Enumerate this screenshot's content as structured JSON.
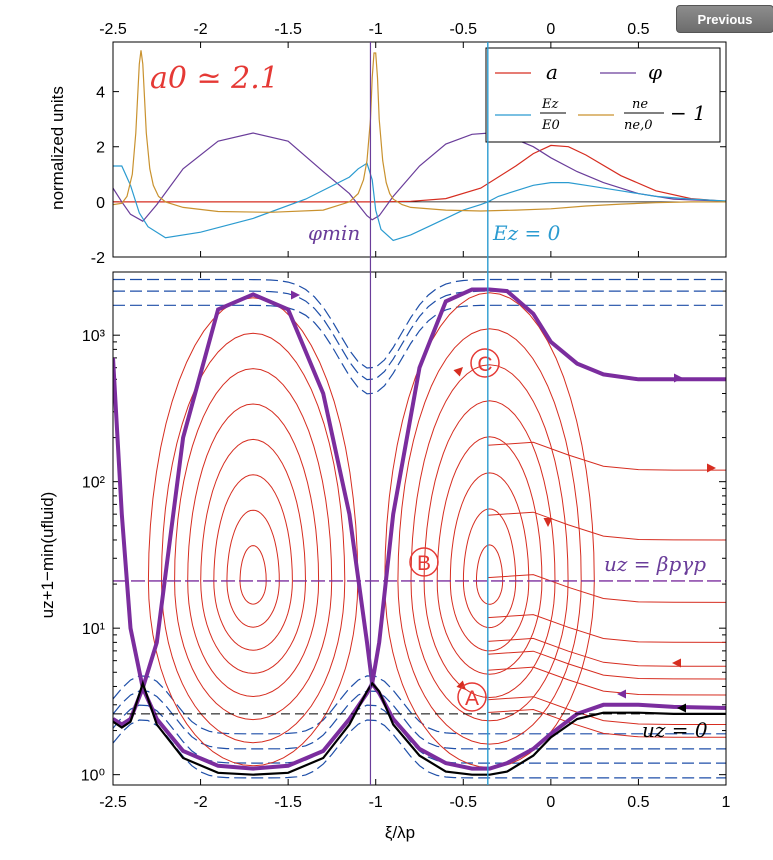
{
  "ui": {
    "previous_label": "Previous"
  },
  "chart_data": [
    {
      "type": "line",
      "panel": "top",
      "ylabel": "normalized units",
      "xlim": [
        -2.5,
        1
      ],
      "ylim": [
        -2,
        5.8
      ],
      "x_ticks": [
        "-2.5",
        "-2",
        "-1.5",
        "-1",
        "-0.5",
        "0",
        "0.5"
      ],
      "x_tick_values": [
        -2.5,
        -2,
        -1.5,
        -1,
        -0.5,
        0,
        0.5
      ],
      "y_ticks": [
        "-2",
        "0",
        "2",
        "4"
      ],
      "y_tick_values": [
        -2,
        0,
        2,
        4
      ],
      "annotation_a0": "a0 ≃ 2.1",
      "annotation_phi_min": "φmin",
      "annotation_ez0": "Ez = 0",
      "legend": {
        "a": "a",
        "phi": "φ",
        "ez_num": "Ez",
        "ez_den": "E0",
        "ne_num": "ne",
        "ne_den": "ne,0",
        "ne_suffix": "− 1"
      },
      "colors": {
        "a": "#d62d20",
        "phi": "#6a3d9a",
        "ez": "#2b9bd0",
        "ne": "#c9922f"
      },
      "series": [
        {
          "key": "a",
          "x": [
            -2.5,
            -1.5,
            -1,
            -0.8,
            -0.6,
            -0.4,
            -0.2,
            -0.1,
            0,
            0.1,
            0.2,
            0.4,
            0.6,
            0.8,
            1.0
          ],
          "y": [
            0,
            0,
            0,
            0.02,
            0.12,
            0.5,
            1.3,
            1.75,
            2.05,
            2.0,
            1.7,
            0.95,
            0.4,
            0.12,
            0.02
          ]
        },
        {
          "key": "phi",
          "x": [
            -2.5,
            -2.45,
            -2.4,
            -2.33,
            -2.25,
            -2.1,
            -1.9,
            -1.7,
            -1.5,
            -1.3,
            -1.15,
            -1.05,
            -1.02,
            -0.98,
            -0.9,
            -0.75,
            -0.6,
            -0.45,
            -0.35,
            -0.25,
            -0.1,
            0,
            0.15,
            0.3,
            0.5,
            0.7,
            1.0
          ],
          "y": [
            0.5,
            0,
            -0.45,
            -0.7,
            -0.1,
            1.2,
            2.2,
            2.5,
            2.2,
            1.1,
            0.3,
            -0.5,
            -0.65,
            -0.5,
            0.2,
            1.3,
            2.1,
            2.45,
            2.5,
            2.4,
            2.0,
            1.6,
            1.1,
            0.7,
            0.3,
            0.1,
            0.02
          ]
        },
        {
          "key": "ez",
          "x": [
            -2.5,
            -2.45,
            -2.4,
            -2.35,
            -2.3,
            -2.2,
            -2.0,
            -1.7,
            -1.4,
            -1.15,
            -1.1,
            -1.05,
            -1.02,
            -1.0,
            -0.97,
            -0.9,
            -0.8,
            -0.7,
            -0.6,
            -0.5,
            -0.4,
            -0.36,
            -0.3,
            -0.2,
            -0.1,
            0,
            0.1,
            0.2,
            0.4,
            0.6,
            0.8,
            1.0
          ],
          "y": [
            1.3,
            1.3,
            0.6,
            -0.4,
            -0.9,
            -1.3,
            -1.1,
            -0.6,
            0.1,
            0.9,
            1.2,
            1.4,
            0.8,
            -0.3,
            -1.0,
            -1.4,
            -1.2,
            -0.9,
            -0.6,
            -0.3,
            -0.1,
            0,
            0.2,
            0.4,
            0.6,
            0.7,
            0.7,
            0.6,
            0.4,
            0.2,
            0.1,
            0.03
          ]
        },
        {
          "key": "ne",
          "x": [
            -2.5,
            -2.45,
            -2.42,
            -2.39,
            -2.37,
            -2.35,
            -2.34,
            -2.33,
            -2.31,
            -2.29,
            -2.27,
            -2.24,
            -2.2,
            -2.1,
            -1.9,
            -1.6,
            -1.3,
            -1.15,
            -1.1,
            -1.07,
            -1.05,
            -1.03,
            -1.02,
            -1.01,
            -1.0,
            -0.99,
            -0.98,
            -0.96,
            -0.94,
            -0.92,
            -0.9,
            -0.85,
            -0.8,
            -0.6,
            -0.4,
            -0.2,
            0,
            0.2,
            0.4,
            0.6,
            0.8,
            1.0
          ],
          "y": [
            -0.1,
            -0.05,
            0.2,
            1.0,
            2.5,
            5.0,
            5.5,
            5.0,
            2.5,
            1.2,
            0.6,
            0.2,
            0,
            -0.2,
            -0.35,
            -0.38,
            -0.3,
            0.0,
            0.3,
            0.8,
            1.5,
            3.0,
            4.5,
            5.4,
            5.4,
            4.5,
            3.0,
            1.5,
            0.7,
            0.3,
            0.1,
            -0.1,
            -0.2,
            -0.3,
            -0.33,
            -0.3,
            -0.25,
            -0.15,
            -0.08,
            -0.03,
            0,
            0
          ]
        }
      ],
      "markers": [
        {
          "key": "phi_min",
          "x": -1.03
        },
        {
          "key": "ez_zero",
          "x": -0.36
        }
      ]
    },
    {
      "type": "line",
      "panel": "bottom",
      "xlabel": "ξ/λp",
      "ylabel": "uz+1−min(ufluid)",
      "y_scale": "log",
      "xlim": [
        -2.5,
        1
      ],
      "ylim": [
        0.85,
        2700
      ],
      "x_ticks": [
        "-2.5",
        "-2",
        "-1.5",
        "-1",
        "-0.5",
        "0",
        "0.5",
        "1"
      ],
      "x_tick_values": [
        -2.5,
        -2,
        -1.5,
        -1,
        -0.5,
        0,
        0.5,
        1
      ],
      "y_ticks": [
        "10⁰",
        "10¹",
        "10²",
        "10³"
      ],
      "y_tick_values": [
        1,
        10,
        100,
        1000
      ],
      "label_A": "A",
      "label_B": "B",
      "label_C": "C",
      "annotation_uz_beta": "uz = βpγp",
      "annotation_uz_zero": "uz = 0",
      "beta_gamma_level": 21,
      "uz_zero_level": 2.6,
      "ez_zero_x": -0.36,
      "phi_min_x": -1.03,
      "colors": {
        "trapped": "#d62d20",
        "untrapped": "#1f4fa8",
        "separatrix": "#7b2d9e",
        "uz0": "#000000"
      },
      "separatrix": {
        "x": [
          -2.5,
          -2.45,
          -2.4,
          -2.33,
          -2.25,
          -2.1,
          -1.9,
          -1.7,
          -1.5,
          -1.3,
          -1.15,
          -1.05,
          -1.02,
          -0.98,
          -0.9,
          -0.75,
          -0.6,
          -0.45,
          -0.35,
          -0.25,
          -0.1,
          0,
          0.15,
          0.3,
          0.5,
          0.7,
          1.0
        ],
        "y_upper_left": [
          700,
          60,
          10,
          3.9,
          8,
          200,
          1500,
          1900,
          1500,
          400,
          60,
          8,
          4.2,
          8,
          60,
          600,
          1700,
          2050,
          2050,
          2000,
          1400,
          900,
          640,
          540,
          500,
          500,
          500
        ],
        "y_lower": [
          2.4,
          2.2,
          2.4,
          3.9,
          2.4,
          1.45,
          1.15,
          1.1,
          1.15,
          1.45,
          2.4,
          3.6,
          4.2,
          3.6,
          2.4,
          1.5,
          1.2,
          1.1,
          1.1,
          1.2,
          1.5,
          1.9,
          2.6,
          3.0,
          3.0,
          2.9,
          2.85
        ]
      },
      "uz0_curve": {
        "x": [
          -2.5,
          -2.45,
          -2.4,
          -2.33,
          -2.25,
          -2.1,
          -1.9,
          -1.7,
          -1.5,
          -1.3,
          -1.15,
          -1.05,
          -1.02,
          -0.98,
          -0.9,
          -0.75,
          -0.6,
          -0.45,
          -0.35,
          -0.25,
          -0.1,
          0,
          0.15,
          0.3,
          0.5,
          0.7,
          1.0
        ],
        "y": [
          2.3,
          2.1,
          2.3,
          4.2,
          2.2,
          1.3,
          1.03,
          1.0,
          1.03,
          1.3,
          2.2,
          3.7,
          4.2,
          3.7,
          2.2,
          1.35,
          1.05,
          1.0,
          1.0,
          1.05,
          1.35,
          1.8,
          2.4,
          2.65,
          2.65,
          2.6,
          2.6
        ]
      }
    }
  ]
}
